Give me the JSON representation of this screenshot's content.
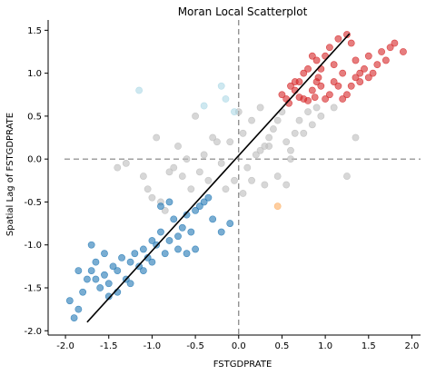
{
  "chart_data": {
    "type": "scatter",
    "title": "Moran Local Scatterplot",
    "xlabel": "FSTGDPRATE",
    "ylabel": "Spatial Lag of FSTGDPRATE",
    "xlim": [
      -2.2,
      2.1
    ],
    "ylim": [
      -2.05,
      1.62
    ],
    "xticks": [
      "-2.0",
      "-1.5",
      "-1.0",
      "-0.5",
      "0.0",
      "0.5",
      "1.0",
      "1.5",
      "2.0"
    ],
    "yticks": [
      "1.5",
      "1.0",
      "0.5",
      "0.0",
      "-0.5",
      "-1.0",
      "-1.5",
      "-2.0"
    ],
    "xtick_values": [
      -2.0,
      -1.5,
      -1.0,
      -0.5,
      0.0,
      0.5,
      1.0,
      1.5,
      2.0
    ],
    "ytick_values": [
      1.5,
      1.0,
      0.5,
      0.0,
      -0.5,
      -1.0,
      -1.5,
      -2.0
    ],
    "grid": false,
    "reference_lines": {
      "x": 0,
      "y": 0,
      "style": "dashed",
      "color": "#808080"
    },
    "fit_line": {
      "x": [
        -1.75,
        1.28
      ],
      "y": [
        -1.9,
        1.46
      ],
      "color": "#000000"
    },
    "series": [
      {
        "color": "#d62728",
        "points": [
          [
            0.5,
            0.75
          ],
          [
            0.55,
            0.7
          ],
          [
            0.6,
            0.85
          ],
          [
            0.65,
            0.9
          ],
          [
            0.7,
            0.72
          ],
          [
            0.75,
            0.7
          ],
          [
            0.8,
            0.68
          ],
          [
            0.85,
            0.8
          ],
          [
            0.9,
            0.9
          ],
          [
            0.92,
            0.95
          ],
          [
            0.95,
            0.85
          ],
          [
            1.0,
            0.7
          ],
          [
            1.05,
            0.75
          ],
          [
            1.1,
            0.9
          ],
          [
            1.15,
            0.85
          ],
          [
            1.2,
            0.7
          ],
          [
            1.25,
            0.75
          ],
          [
            1.3,
            0.85
          ],
          [
            1.35,
            0.95
          ],
          [
            1.4,
            1.0
          ],
          [
            1.45,
            1.05
          ],
          [
            1.5,
            1.2
          ],
          [
            1.55,
            1.0
          ],
          [
            1.6,
            1.1
          ],
          [
            1.65,
            1.25
          ],
          [
            1.7,
            1.15
          ],
          [
            1.75,
            1.3
          ],
          [
            1.8,
            1.35
          ],
          [
            1.9,
            1.25
          ],
          [
            0.8,
            1.05
          ],
          [
            0.9,
            1.15
          ],
          [
            1.0,
            1.2
          ],
          [
            1.05,
            1.3
          ],
          [
            1.15,
            1.4
          ],
          [
            1.25,
            1.45
          ],
          [
            1.3,
            1.35
          ],
          [
            1.1,
            1.1
          ],
          [
            0.95,
            1.05
          ],
          [
            0.85,
            1.2
          ],
          [
            0.75,
            1.0
          ],
          [
            0.65,
            0.8
          ],
          [
            0.58,
            0.65
          ],
          [
            1.2,
            1.0
          ],
          [
            1.35,
            1.15
          ],
          [
            1.4,
            0.9
          ],
          [
            1.5,
            0.95
          ],
          [
            0.7,
            0.9
          ],
          [
            0.88,
            0.72
          ]
        ]
      },
      {
        "color": "#1f77b4",
        "points": [
          [
            -1.95,
            -1.65
          ],
          [
            -1.9,
            -1.85
          ],
          [
            -1.85,
            -1.75
          ],
          [
            -1.8,
            -1.55
          ],
          [
            -1.75,
            -1.4
          ],
          [
            -1.7,
            -1.3
          ],
          [
            -1.65,
            -1.2
          ],
          [
            -1.6,
            -1.5
          ],
          [
            -1.55,
            -1.35
          ],
          [
            -1.5,
            -1.45
          ],
          [
            -1.45,
            -1.25
          ],
          [
            -1.4,
            -1.3
          ],
          [
            -1.35,
            -1.15
          ],
          [
            -1.3,
            -1.4
          ],
          [
            -1.25,
            -1.2
          ],
          [
            -1.2,
            -1.1
          ],
          [
            -1.15,
            -1.25
          ],
          [
            -1.1,
            -1.05
          ],
          [
            -1.05,
            -1.15
          ],
          [
            -1.0,
            -0.95
          ],
          [
            -0.95,
            -1.0
          ],
          [
            -0.9,
            -0.85
          ],
          [
            -0.85,
            -1.1
          ],
          [
            -0.8,
            -0.95
          ],
          [
            -0.75,
            -0.7
          ],
          [
            -0.7,
            -0.9
          ],
          [
            -0.65,
            -0.8
          ],
          [
            -0.6,
            -0.65
          ],
          [
            -0.55,
            -0.85
          ],
          [
            -0.5,
            -0.6
          ],
          [
            -0.45,
            -0.55
          ],
          [
            -0.4,
            -0.5
          ],
          [
            -0.35,
            -0.45
          ],
          [
            -0.3,
            -0.7
          ],
          [
            -0.2,
            -0.85
          ],
          [
            -0.1,
            -0.75
          ],
          [
            -1.7,
            -1.0
          ],
          [
            -1.55,
            -1.1
          ],
          [
            -1.25,
            -1.45
          ],
          [
            -1.1,
            -1.3
          ],
          [
            -0.9,
            -0.55
          ],
          [
            -0.8,
            -0.5
          ],
          [
            -0.6,
            -1.1
          ],
          [
            -0.5,
            -1.05
          ],
          [
            -1.85,
            -1.3
          ],
          [
            -1.65,
            -1.4
          ],
          [
            -1.4,
            -1.55
          ],
          [
            -1.0,
            -1.2
          ],
          [
            -0.7,
            -1.05
          ],
          [
            -1.5,
            -1.6
          ]
        ]
      },
      {
        "color": "#add8e6",
        "points": [
          [
            -1.15,
            0.8
          ],
          [
            -0.4,
            0.62
          ],
          [
            -0.2,
            0.85
          ],
          [
            -0.15,
            0.7
          ],
          [
            -0.05,
            0.55
          ]
        ]
      },
      {
        "color": "#fdae61",
        "points": [
          [
            0.45,
            -0.55
          ]
        ]
      },
      {
        "color": "#bdbdbd",
        "points": [
          [
            -1.4,
            -0.1
          ],
          [
            -1.3,
            -0.05
          ],
          [
            -1.1,
            -0.2
          ],
          [
            -1.05,
            -0.35
          ],
          [
            -1.0,
            -0.45
          ],
          [
            -0.9,
            -0.5
          ],
          [
            -0.85,
            -0.6
          ],
          [
            -0.75,
            -0.1
          ],
          [
            -0.65,
            -0.2
          ],
          [
            -0.55,
            -0.35
          ],
          [
            -0.45,
            -0.15
          ],
          [
            -0.35,
            -0.25
          ],
          [
            -0.25,
            0.2
          ],
          [
            -0.15,
            -0.35
          ],
          [
            -0.05,
            -0.25
          ],
          [
            0.05,
            -0.4
          ],
          [
            0.1,
            -0.1
          ],
          [
            0.15,
            -0.25
          ],
          [
            0.2,
            0.05
          ],
          [
            0.25,
            0.1
          ],
          [
            0.3,
            0.15
          ],
          [
            0.35,
            0.25
          ],
          [
            0.4,
            0.35
          ],
          [
            0.45,
            0.45
          ],
          [
            0.5,
            0.55
          ],
          [
            0.55,
            0.2
          ],
          [
            0.6,
            0.1
          ],
          [
            0.65,
            0.3
          ],
          [
            0.7,
            0.45
          ],
          [
            0.75,
            0.3
          ],
          [
            0.8,
            0.55
          ],
          [
            0.85,
            0.4
          ],
          [
            0.9,
            0.6
          ],
          [
            0.95,
            0.5
          ],
          [
            1.1,
            0.6
          ],
          [
            1.25,
            -0.2
          ],
          [
            1.35,
            0.25
          ],
          [
            -0.95,
            0.25
          ],
          [
            -0.7,
            0.15
          ],
          [
            -0.5,
            0.5
          ],
          [
            -0.3,
            0.25
          ],
          [
            -0.1,
            0.2
          ],
          [
            0.0,
            0.55
          ],
          [
            0.05,
            0.3
          ],
          [
            0.15,
            0.45
          ],
          [
            0.25,
            0.6
          ],
          [
            0.35,
            0.15
          ],
          [
            0.45,
            -0.2
          ],
          [
            0.55,
            -0.3
          ],
          [
            -0.6,
            0.0
          ],
          [
            -0.4,
            0.05
          ],
          [
            -0.2,
            -0.05
          ],
          [
            0.3,
            -0.3
          ],
          [
            0.6,
            0.0
          ],
          [
            -0.8,
            -0.15
          ]
        ]
      }
    ]
  }
}
